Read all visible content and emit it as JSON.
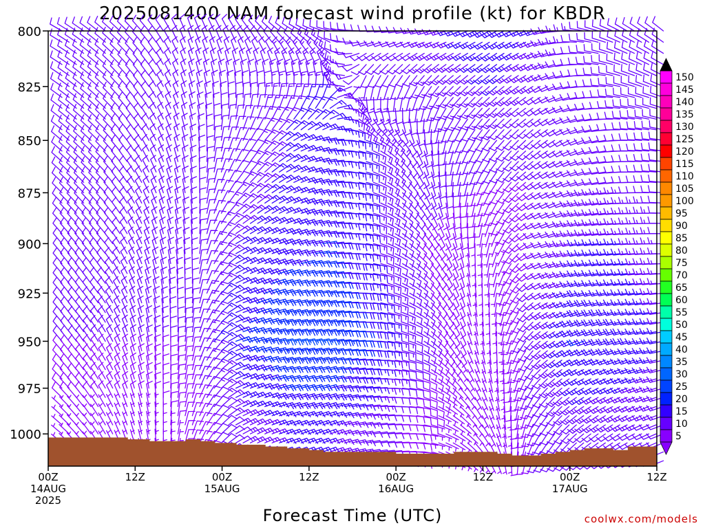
{
  "chart_data": {
    "type": "wind-barb-profile",
    "title": "2025081400 NAM forecast wind profile (kt) for KBDR",
    "xlabel": "Forecast Time (UTC)",
    "ylabel": "",
    "credit": "coolwx.com/models",
    "y_axis": {
      "scale": "pressure (hPa)",
      "range": [
        800,
        1018
      ],
      "ticks": [
        800,
        825,
        850,
        875,
        900,
        925,
        950,
        975,
        1000
      ]
    },
    "x_axis": {
      "range_hours": [
        0,
        84
      ],
      "ticks": [
        {
          "hour": 0,
          "line1": "00Z",
          "line2": "14AUG",
          "line3": "2025"
        },
        {
          "hour": 12,
          "line1": "12Z",
          "line2": "",
          "line3": ""
        },
        {
          "hour": 24,
          "line1": "00Z",
          "line2": "15AUG",
          "line3": ""
        },
        {
          "hour": 36,
          "line1": "12Z",
          "line2": "",
          "line3": ""
        },
        {
          "hour": 48,
          "line1": "00Z",
          "line2": "16AUG",
          "line3": ""
        },
        {
          "hour": 60,
          "line1": "12Z",
          "line2": "",
          "line3": ""
        },
        {
          "hour": 72,
          "line1": "00Z",
          "line2": "17AUG",
          "line3": ""
        },
        {
          "hour": 84,
          "line1": "12Z",
          "line2": "",
          "line3": ""
        }
      ]
    },
    "colorbar": {
      "levels": [
        5,
        10,
        15,
        20,
        25,
        30,
        35,
        40,
        45,
        50,
        55,
        60,
        65,
        70,
        75,
        80,
        85,
        90,
        95,
        100,
        105,
        110,
        115,
        120,
        125,
        130,
        135,
        140,
        145,
        150
      ],
      "colors": [
        "#8800ff",
        "#6600ff",
        "#3300ff",
        "#0022ff",
        "#0044ff",
        "#0066ff",
        "#0088ff",
        "#00aaff",
        "#00ccff",
        "#00ffdd",
        "#00ffaa",
        "#00ff55",
        "#22ff22",
        "#66ff00",
        "#aaff00",
        "#ddff00",
        "#ffff00",
        "#ffdd00",
        "#ffbb00",
        "#ff9900",
        "#ff8800",
        "#ff6600",
        "#ff4400",
        "#ff0000",
        "#ff0033",
        "#ff0066",
        "#ff0099",
        "#ff00bb",
        "#ff00dd",
        "#ff00ff"
      ],
      "min_color": "#8800ff",
      "max_color": "#000000"
    },
    "terrain": {
      "color": "#a0522d",
      "surface_pressure": [
        {
          "hour": 0,
          "p": 1002
        },
        {
          "hour": 10,
          "p": 1002
        },
        {
          "hour": 11,
          "p": 1003
        },
        {
          "hour": 14,
          "p": 1004
        },
        {
          "hour": 19,
          "p": 1003
        },
        {
          "hour": 21,
          "p": 1004
        },
        {
          "hour": 23,
          "p": 1005
        },
        {
          "hour": 26,
          "p": 1006
        },
        {
          "hour": 30,
          "p": 1007
        },
        {
          "hour": 33,
          "p": 1008
        },
        {
          "hour": 36,
          "p": 1009
        },
        {
          "hour": 38,
          "p": 1010
        },
        {
          "hour": 46,
          "p": 1010
        },
        {
          "hour": 48,
          "p": 1011
        },
        {
          "hour": 54,
          "p": 1011
        },
        {
          "hour": 56,
          "p": 1010
        },
        {
          "hour": 62,
          "p": 1011
        },
        {
          "hour": 64,
          "p": 1012
        },
        {
          "hour": 68,
          "p": 1011
        },
        {
          "hour": 70,
          "p": 1010
        },
        {
          "hour": 72,
          "p": 1009
        },
        {
          "hour": 74,
          "p": 1008
        },
        {
          "hour": 78,
          "p": 1009
        },
        {
          "hour": 80,
          "p": 1007
        },
        {
          "hour": 84,
          "p": 1007
        }
      ]
    },
    "wind_field": {
      "time_step_hours": 1,
      "pressure_levels": [
        800,
        805,
        810,
        815,
        820,
        825,
        830,
        835,
        840,
        845,
        850,
        855,
        860,
        865,
        870,
        875,
        880,
        885,
        890,
        895,
        900,
        905,
        910,
        915,
        920,
        925,
        930,
        935,
        940,
        945,
        950,
        955,
        960,
        965,
        970,
        975,
        980,
        985,
        990,
        995,
        1000,
        1005,
        1010,
        1015
      ],
      "anchors": [
        {
          "hour": 0,
          "levels": [
            {
              "p": 800,
              "dir": 300,
              "spd": 12
            },
            {
              "p": 850,
              "dir": 310,
              "spd": 12
            },
            {
              "p": 900,
              "dir": 320,
              "spd": 12
            },
            {
              "p": 950,
              "dir": 320,
              "spd": 10
            },
            {
              "p": 1000,
              "dir": 310,
              "spd": 6
            }
          ]
        },
        {
          "hour": 6,
          "levels": [
            {
              "p": 800,
              "dir": 310,
              "spd": 12
            },
            {
              "p": 850,
              "dir": 315,
              "spd": 12
            },
            {
              "p": 900,
              "dir": 320,
              "spd": 12
            },
            {
              "p": 950,
              "dir": 330,
              "spd": 10
            },
            {
              "p": 1000,
              "dir": 330,
              "spd": 6
            }
          ]
        },
        {
          "hour": 12,
          "levels": [
            {
              "p": 800,
              "dir": 320,
              "spd": 10
            },
            {
              "p": 850,
              "dir": 330,
              "spd": 12
            },
            {
              "p": 900,
              "dir": 340,
              "spd": 12
            },
            {
              "p": 950,
              "dir": 350,
              "spd": 10
            },
            {
              "p": 1000,
              "dir": 350,
              "spd": 6
            }
          ]
        },
        {
          "hour": 18,
          "levels": [
            {
              "p": 800,
              "dir": 340,
              "spd": 10
            },
            {
              "p": 850,
              "dir": 350,
              "spd": 10
            },
            {
              "p": 900,
              "dir": 355,
              "spd": 10
            },
            {
              "p": 950,
              "dir": 10,
              "spd": 10
            },
            {
              "p": 1000,
              "dir": 20,
              "spd": 8
            }
          ]
        },
        {
          "hour": 24,
          "levels": [
            {
              "p": 800,
              "dir": 330,
              "spd": 10
            },
            {
              "p": 850,
              "dir": 20,
              "spd": 10
            },
            {
              "p": 900,
              "dir": 60,
              "spd": 15
            },
            {
              "p": 950,
              "dir": 70,
              "spd": 20
            },
            {
              "p": 1000,
              "dir": 60,
              "spd": 12
            }
          ]
        },
        {
          "hour": 30,
          "levels": [
            {
              "p": 800,
              "dir": 310,
              "spd": 12
            },
            {
              "p": 850,
              "dir": 50,
              "spd": 15
            },
            {
              "p": 900,
              "dir": 70,
              "spd": 18
            },
            {
              "p": 950,
              "dir": 80,
              "spd": 25
            },
            {
              "p": 1000,
              "dir": 70,
              "spd": 15
            }
          ]
        },
        {
          "hour": 36,
          "levels": [
            {
              "p": 800,
              "dir": 290,
              "spd": 12
            },
            {
              "p": 850,
              "dir": 80,
              "spd": 18
            },
            {
              "p": 900,
              "dir": 80,
              "spd": 20
            },
            {
              "p": 950,
              "dir": 80,
              "spd": 25
            },
            {
              "p": 1000,
              "dir": 70,
              "spd": 15
            }
          ]
        },
        {
          "hour": 42,
          "levels": [
            {
              "p": 800,
              "dir": 270,
              "spd": 10
            },
            {
              "p": 850,
              "dir": 110,
              "spd": 15
            },
            {
              "p": 900,
              "dir": 100,
              "spd": 15
            },
            {
              "p": 950,
              "dir": 90,
              "spd": 20
            },
            {
              "p": 1000,
              "dir": 80,
              "spd": 12
            }
          ]
        },
        {
          "hour": 48,
          "levels": [
            {
              "p": 800,
              "dir": 260,
              "spd": 12
            },
            {
              "p": 850,
              "dir": 150,
              "spd": 12
            },
            {
              "p": 900,
              "dir": 130,
              "spd": 10
            },
            {
              "p": 950,
              "dir": 110,
              "spd": 12
            },
            {
              "p": 1000,
              "dir": 90,
              "spd": 8
            }
          ]
        },
        {
          "hour": 54,
          "levels": [
            {
              "p": 800,
              "dir": 250,
              "spd": 15
            },
            {
              "p": 850,
              "dir": 200,
              "spd": 12
            },
            {
              "p": 900,
              "dir": 160,
              "spd": 8
            },
            {
              "p": 950,
              "dir": 150,
              "spd": 8
            },
            {
              "p": 1000,
              "dir": 120,
              "spd": 6
            }
          ]
        },
        {
          "hour": 60,
          "levels": [
            {
              "p": 800,
              "dir": 240,
              "spd": 18
            },
            {
              "p": 850,
              "dir": 220,
              "spd": 12
            },
            {
              "p": 900,
              "dir": 200,
              "spd": 6
            },
            {
              "p": 950,
              "dir": 180,
              "spd": 6
            },
            {
              "p": 1000,
              "dir": 160,
              "spd": 6
            }
          ]
        },
        {
          "hour": 66,
          "levels": [
            {
              "p": 800,
              "dir": 250,
              "spd": 15
            },
            {
              "p": 850,
              "dir": 230,
              "spd": 10
            },
            {
              "p": 900,
              "dir": 250,
              "spd": 10
            },
            {
              "p": 950,
              "dir": 230,
              "spd": 12
            },
            {
              "p": 1000,
              "dir": 210,
              "spd": 10
            }
          ]
        },
        {
          "hour": 72,
          "levels": [
            {
              "p": 800,
              "dir": 280,
              "spd": 12
            },
            {
              "p": 850,
              "dir": 250,
              "spd": 10
            },
            {
              "p": 900,
              "dir": 260,
              "spd": 15
            },
            {
              "p": 950,
              "dir": 250,
              "spd": 20
            },
            {
              "p": 1000,
              "dir": 230,
              "spd": 12
            }
          ]
        },
        {
          "hour": 78,
          "levels": [
            {
              "p": 800,
              "dir": 300,
              "spd": 12
            },
            {
              "p": 850,
              "dir": 270,
              "spd": 10
            },
            {
              "p": 900,
              "dir": 265,
              "spd": 15
            },
            {
              "p": 950,
              "dir": 255,
              "spd": 18
            },
            {
              "p": 1000,
              "dir": 240,
              "spd": 12
            }
          ]
        },
        {
          "hour": 84,
          "levels": [
            {
              "p": 800,
              "dir": 310,
              "spd": 12
            },
            {
              "p": 850,
              "dir": 280,
              "spd": 12
            },
            {
              "p": 900,
              "dir": 270,
              "spd": 12
            },
            {
              "p": 950,
              "dir": 260,
              "spd": 15
            },
            {
              "p": 1000,
              "dir": 250,
              "spd": 12
            }
          ]
        }
      ]
    }
  }
}
